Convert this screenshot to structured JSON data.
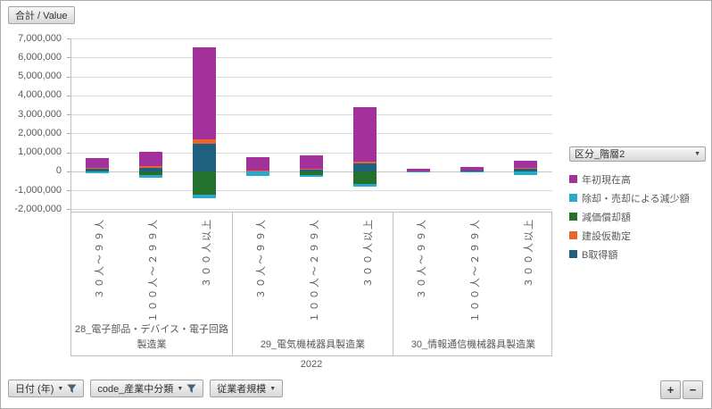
{
  "value_field_button": {
    "label": "合計 / Value"
  },
  "legend": {
    "header": "区分_階層2"
  },
  "filters": [
    {
      "label": "日付 (年)",
      "funnel": true
    },
    {
      "label": "code_産業中分類",
      "funnel": true
    },
    {
      "label": "従業者規模",
      "funnel": false
    }
  ],
  "zoom_buttons": {
    "plus": "+",
    "minus": "−"
  },
  "chart_data": {
    "type": "bar",
    "stacked": true,
    "grid": true,
    "legend_position": "right",
    "outer_category": "2022",
    "y_axis": {
      "min": -2000000,
      "max": 7000000,
      "step": 1000000
    },
    "group_categories": [
      "３０人～９９人",
      "１００人～２９９人",
      "３００人以上"
    ],
    "groups": [
      "28_電子部品・デバイス・電子回路製造業",
      "29_電気機械器具製造業",
      "30_情報通信機械器具製造業"
    ],
    "series": [
      {
        "name": "年初現在高",
        "color": "#A3319C",
        "values": [
          550000,
          750000,
          4830000,
          680000,
          670000,
          2860000,
          100000,
          220000,
          380000
        ]
      },
      {
        "name": "除却・売却による減少額",
        "color": "#2BA9C9",
        "values": [
          -80000,
          -120000,
          -220000,
          -200000,
          -80000,
          -160000,
          -10000,
          -20000,
          -190000
        ]
      },
      {
        "name": "減価償却額",
        "color": "#23702F",
        "values": [
          -30000,
          -220000,
          -1220000,
          -30000,
          -220000,
          -650000,
          -10000,
          -20000,
          -30000
        ]
      },
      {
        "name": "建設仮勘定",
        "color": "#E8662B",
        "values": [
          30000,
          90000,
          240000,
          10000,
          20000,
          90000,
          0,
          0,
          10000
        ]
      },
      {
        "name": "B取得額",
        "color": "#1F5F7F",
        "values": [
          130000,
          190000,
          1460000,
          30000,
          130000,
          420000,
          10000,
          20000,
          170000
        ]
      }
    ]
  }
}
